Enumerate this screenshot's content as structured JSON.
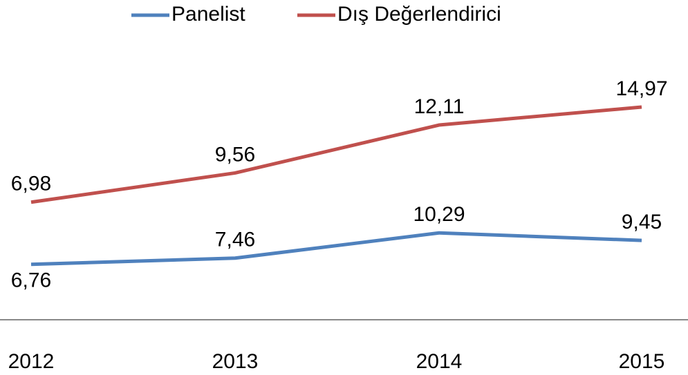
{
  "chart_data": {
    "type": "line",
    "stacked": true,
    "categories": [
      "2012",
      "2013",
      "2014",
      "2015"
    ],
    "series": [
      {
        "name": "Panelist",
        "color": "#4f81bd",
        "values": [
          6.76,
          7.46,
          10.29,
          9.45
        ],
        "value_labels": [
          "6,76",
          "7,46",
          "10,29",
          "9,45"
        ]
      },
      {
        "name": "Dış Değerlendirici",
        "color": "#c0504d",
        "values": [
          6.98,
          9.56,
          12.11,
          14.97
        ],
        "value_labels": [
          "6,98",
          "9,56",
          "12,11",
          "14,97"
        ]
      }
    ],
    "ylim": [
      0,
      35
    ],
    "legend": "top"
  }
}
